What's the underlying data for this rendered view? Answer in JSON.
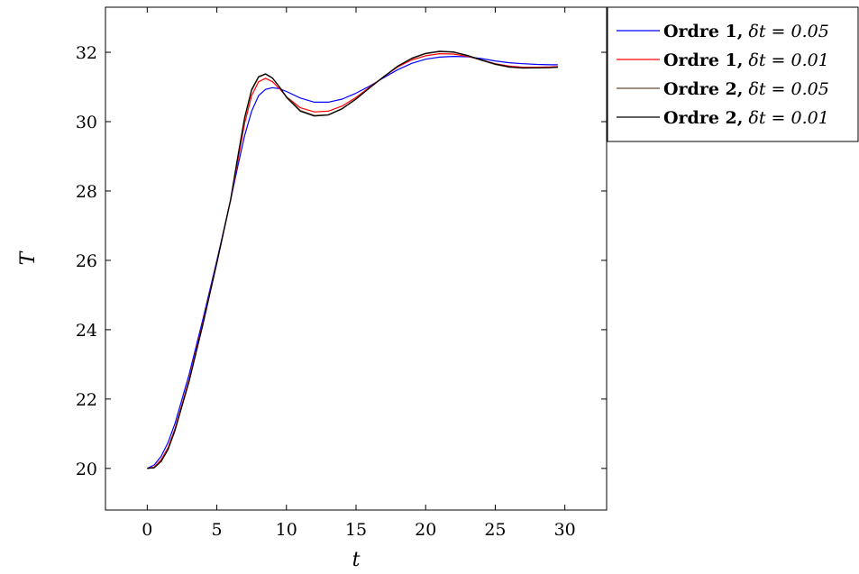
{
  "chart_data": {
    "type": "line",
    "title": "",
    "xlabel": "t",
    "ylabel": "T",
    "xlim": [
      -3,
      33
    ],
    "ylim": [
      18.8,
      33.3
    ],
    "xticks": [
      0,
      5,
      10,
      15,
      20,
      25,
      30
    ],
    "yticks": [
      20,
      22,
      24,
      26,
      28,
      30,
      32
    ],
    "grid": false,
    "legend_position": "outside-top-right",
    "series": [
      {
        "name": "Ordre 1, δt = 0.05",
        "legend_bold": "Ordre 1,",
        "legend_math": "δt = 0.05",
        "color": "#0000ff",
        "x": [
          0,
          0.5,
          1,
          1.5,
          2,
          3,
          4,
          5,
          6,
          6.5,
          7,
          7.5,
          8,
          8.5,
          9,
          9.5,
          10,
          11,
          12,
          13,
          14,
          15,
          16,
          17,
          18,
          19,
          20,
          21,
          22,
          23,
          24,
          25,
          26,
          27,
          28,
          29,
          29.5
        ],
        "y": [
          20.0,
          20.1,
          20.35,
          20.75,
          21.3,
          22.7,
          24.3,
          26.0,
          27.75,
          28.7,
          29.6,
          30.3,
          30.75,
          30.93,
          30.98,
          30.95,
          30.87,
          30.68,
          30.56,
          30.56,
          30.65,
          30.82,
          31.03,
          31.27,
          31.5,
          31.68,
          31.8,
          31.86,
          31.88,
          31.87,
          31.82,
          31.75,
          31.7,
          31.67,
          31.65,
          31.64,
          31.64
        ]
      },
      {
        "name": "Ordre 1, δt = 0.01",
        "legend_bold": "Ordre 1,",
        "legend_math": "δt = 0.01",
        "color": "#ff0000",
        "x": [
          0,
          0.5,
          1,
          1.5,
          2,
          3,
          4,
          5,
          6,
          6.5,
          7,
          7.5,
          8,
          8.5,
          9,
          9.5,
          10,
          11,
          12,
          13,
          14,
          15,
          16,
          17,
          18,
          19,
          20,
          21,
          22,
          23,
          24,
          25,
          26,
          27,
          28,
          29,
          29.5
        ],
        "y": [
          20.0,
          20.04,
          20.25,
          20.6,
          21.15,
          22.55,
          24.2,
          25.95,
          27.75,
          28.85,
          29.95,
          30.75,
          31.15,
          31.25,
          31.15,
          30.95,
          30.72,
          30.4,
          30.28,
          30.3,
          30.45,
          30.7,
          31.0,
          31.3,
          31.58,
          31.78,
          31.9,
          31.96,
          31.95,
          31.88,
          31.78,
          31.67,
          31.6,
          31.57,
          31.57,
          31.58,
          31.59
        ]
      },
      {
        "name": "Ordre 2, δt = 0.05",
        "legend_bold": "Ordre 2,",
        "legend_math": "δt = 0.05",
        "color": "#6b4a2e",
        "x": [
          0,
          0.5,
          1,
          1.5,
          2,
          3,
          4,
          5,
          6,
          6.5,
          7,
          7.5,
          8,
          8.5,
          9,
          9.5,
          10,
          11,
          12,
          13,
          14,
          15,
          16,
          17,
          18,
          19,
          20,
          21,
          22,
          23,
          24,
          25,
          26,
          27,
          28,
          29,
          29.5
        ],
        "y": [
          20.0,
          20.02,
          20.2,
          20.55,
          21.1,
          22.5,
          24.15,
          25.92,
          27.75,
          28.95,
          30.1,
          30.9,
          31.28,
          31.37,
          31.25,
          31.0,
          30.72,
          30.32,
          30.18,
          30.2,
          30.38,
          30.66,
          30.98,
          31.3,
          31.6,
          31.82,
          31.96,
          32.02,
          32.0,
          31.9,
          31.77,
          31.65,
          31.57,
          31.54,
          31.55,
          31.56,
          31.57
        ]
      },
      {
        "name": "Ordre 2, δt = 0.01",
        "legend_bold": "Ordre 2,",
        "legend_math": "δt = 0.01",
        "color": "#000000",
        "x": [
          0,
          0.5,
          1,
          1.5,
          2,
          3,
          4,
          5,
          6,
          6.5,
          7,
          7.5,
          8,
          8.5,
          9,
          9.5,
          10,
          11,
          12,
          13,
          14,
          15,
          16,
          17,
          18,
          19,
          20,
          21,
          22,
          23,
          24,
          25,
          26,
          27,
          28,
          29,
          29.5
        ],
        "y": [
          20.0,
          20.02,
          20.2,
          20.55,
          21.1,
          22.5,
          24.15,
          25.93,
          27.78,
          28.98,
          30.12,
          30.93,
          31.3,
          31.38,
          31.26,
          31.0,
          30.7,
          30.3,
          30.16,
          30.19,
          30.37,
          30.65,
          30.98,
          31.3,
          31.6,
          31.83,
          31.97,
          32.03,
          32.01,
          31.91,
          31.78,
          31.66,
          31.58,
          31.55,
          31.55,
          31.56,
          31.57
        ]
      }
    ]
  }
}
